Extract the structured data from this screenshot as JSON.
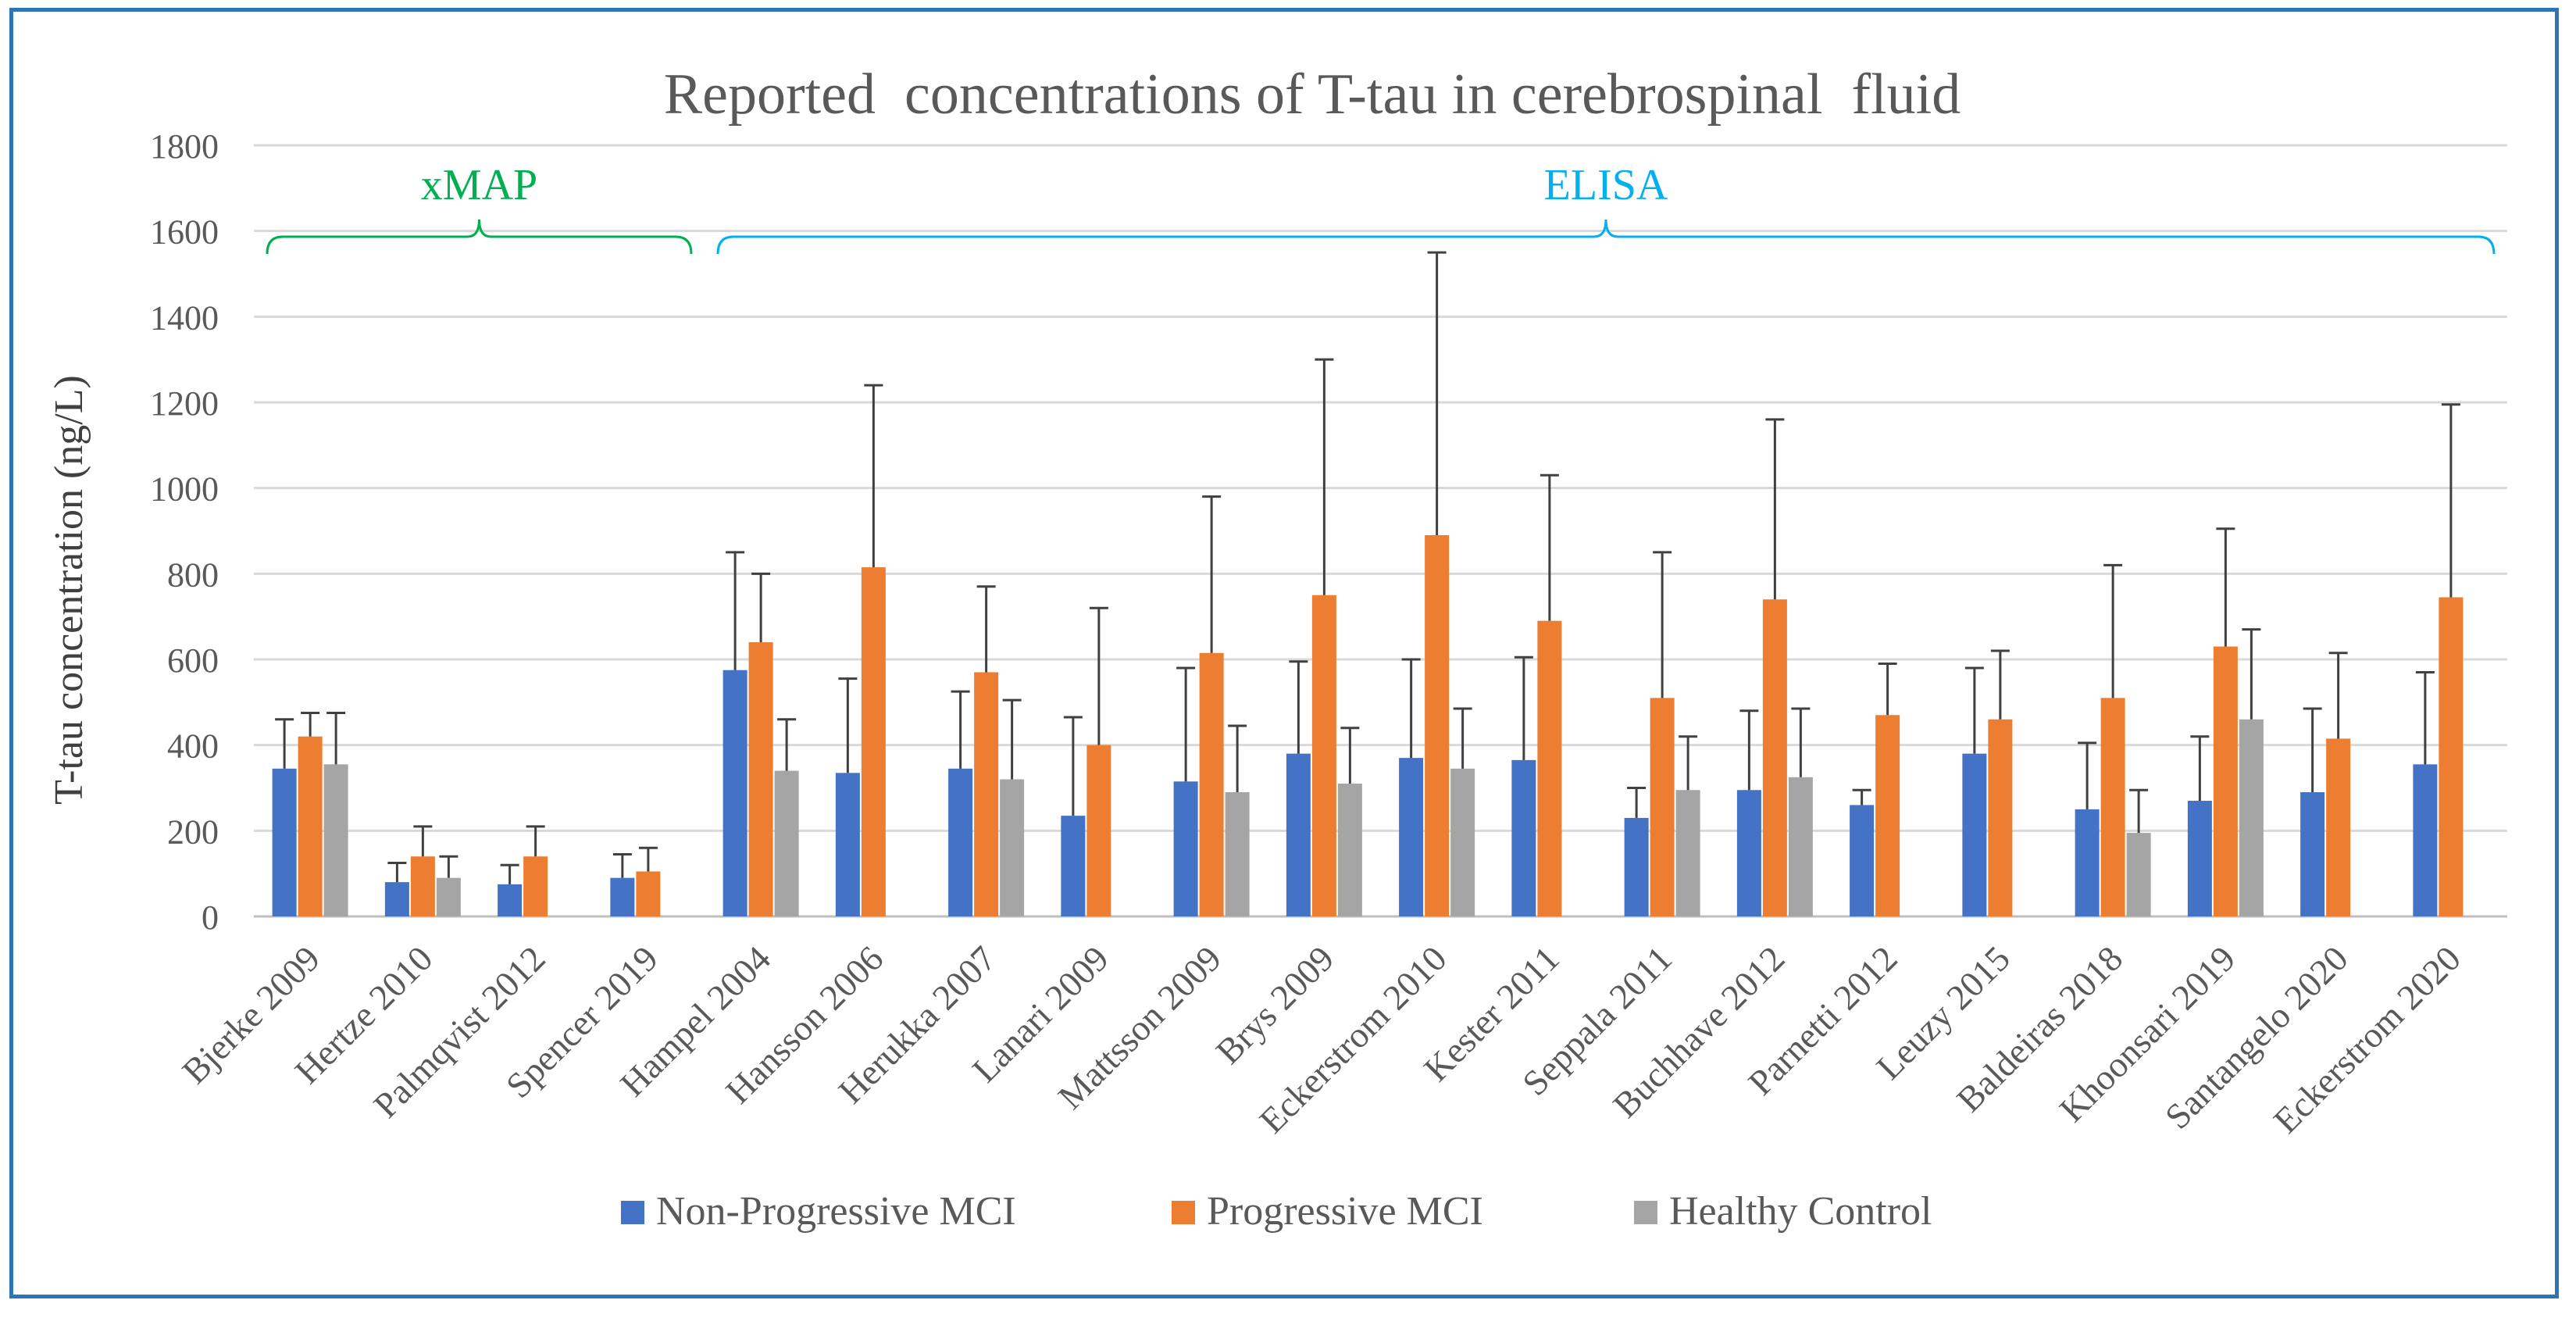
{
  "chart_data": {
    "type": "bar",
    "title": "Reported  concentrations of T-tau in cerebrospinal  fluid",
    "ylabel": "T-tau concentration (ng/L)",
    "xlabel": "",
    "ylim": [
      0,
      1800
    ],
    "yticks": [
      0,
      200,
      400,
      600,
      800,
      1000,
      1200,
      1400,
      1600,
      1800
    ],
    "grid": true,
    "legend_position": "bottom",
    "categories": [
      "Bjerke 2009",
      "Hertze 2010",
      "Palmqvist 2012",
      "Spencer 2019",
      "Hampel 2004",
      "Hansson 2006",
      "Herukka 2007",
      "Lanari 2009",
      "Mattsson 2009",
      "Brys 2009",
      "Eckerstrom 2010",
      "Kester 2011",
      "Seppala 2011",
      "Buchhave 2012",
      "Parnetti 2012",
      "Leuzy 2015",
      "Baldeiras 2018",
      "Khoonsari 2019",
      "Santangelo 2020",
      "Eckerstrom 2020"
    ],
    "series": [
      {
        "name": "Non-Progressive MCI",
        "color": "#4472c4",
        "values": [
          345,
          80,
          75,
          90,
          575,
          335,
          345,
          235,
          315,
          380,
          370,
          365,
          230,
          295,
          260,
          380,
          250,
          270,
          290,
          355
        ],
        "error_upper": [
          460,
          125,
          120,
          145,
          850,
          555,
          525,
          465,
          580,
          595,
          600,
          605,
          300,
          480,
          295,
          580,
          405,
          420,
          485,
          570
        ]
      },
      {
        "name": "Progressive MCI",
        "color": "#ed7d31",
        "values": [
          420,
          140,
          140,
          105,
          640,
          815,
          570,
          400,
          615,
          750,
          890,
          690,
          510,
          740,
          470,
          460,
          510,
          630,
          415,
          745
        ],
        "error_upper": [
          475,
          210,
          210,
          160,
          800,
          1240,
          770,
          720,
          980,
          1300,
          1550,
          1030,
          850,
          1160,
          590,
          620,
          820,
          905,
          615,
          1195
        ]
      },
      {
        "name": "Healthy Control",
        "color": "#a5a5a5",
        "values": [
          355,
          90,
          null,
          null,
          340,
          null,
          320,
          null,
          290,
          310,
          345,
          null,
          295,
          325,
          null,
          null,
          195,
          460,
          null,
          null
        ],
        "error_upper": [
          475,
          140,
          null,
          null,
          460,
          null,
          505,
          null,
          445,
          440,
          485,
          null,
          420,
          485,
          null,
          null,
          295,
          670,
          null,
          null
        ]
      }
    ],
    "groups": [
      {
        "label": "xMAP",
        "color": "#00b050",
        "start_index": 0,
        "end_index": 3
      },
      {
        "label": "ELISA",
        "color": "#00b0f0",
        "start_index": 4,
        "end_index": 19
      }
    ]
  }
}
